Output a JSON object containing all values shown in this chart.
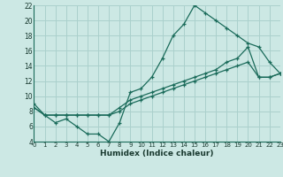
{
  "xlabel": "Humidex (Indice chaleur)",
  "ylabel": "",
  "bg_color": "#cce8e4",
  "grid_color": "#aad0cc",
  "line_color": "#1a6b5a",
  "xlim": [
    0,
    23
  ],
  "ylim": [
    4,
    22
  ],
  "xticks": [
    0,
    1,
    2,
    3,
    4,
    5,
    6,
    7,
    8,
    9,
    10,
    11,
    12,
    13,
    14,
    15,
    16,
    17,
    18,
    19,
    20,
    21,
    22,
    23
  ],
  "yticks": [
    4,
    6,
    8,
    10,
    12,
    14,
    16,
    18,
    20,
    22
  ],
  "line1_x": [
    0,
    1,
    2,
    3,
    4,
    5,
    6,
    7,
    8,
    9,
    10,
    11,
    12,
    13,
    14,
    15,
    16,
    17,
    18,
    19,
    20,
    21,
    22,
    23
  ],
  "line1_y": [
    9.0,
    7.5,
    6.5,
    7.0,
    6.0,
    5.0,
    5.0,
    4.0,
    6.5,
    10.5,
    11.0,
    12.5,
    15.0,
    18.0,
    19.5,
    22.0,
    21.0,
    20.0,
    19.0,
    18.0,
    17.0,
    16.5,
    14.5,
    13.0
  ],
  "line2_x": [
    0,
    1,
    2,
    3,
    4,
    5,
    6,
    7,
    8,
    9,
    10,
    11,
    12,
    13,
    14,
    15,
    16,
    17,
    18,
    19,
    20,
    21,
    22,
    23
  ],
  "line2_y": [
    8.5,
    7.5,
    7.5,
    7.5,
    7.5,
    7.5,
    7.5,
    7.5,
    8.5,
    9.5,
    10.0,
    10.5,
    11.0,
    11.5,
    12.0,
    12.5,
    13.0,
    13.5,
    14.5,
    15.0,
    16.5,
    12.5,
    12.5,
    13.0
  ],
  "line3_x": [
    0,
    1,
    2,
    3,
    4,
    5,
    6,
    7,
    8,
    9,
    10,
    11,
    12,
    13,
    14,
    15,
    16,
    17,
    18,
    19,
    20,
    21,
    22,
    23
  ],
  "line3_y": [
    8.5,
    7.5,
    7.5,
    7.5,
    7.5,
    7.5,
    7.5,
    7.5,
    8.0,
    9.0,
    9.5,
    10.0,
    10.5,
    11.0,
    11.5,
    12.0,
    12.5,
    13.0,
    13.5,
    14.0,
    14.5,
    12.5,
    12.5,
    13.0
  ]
}
